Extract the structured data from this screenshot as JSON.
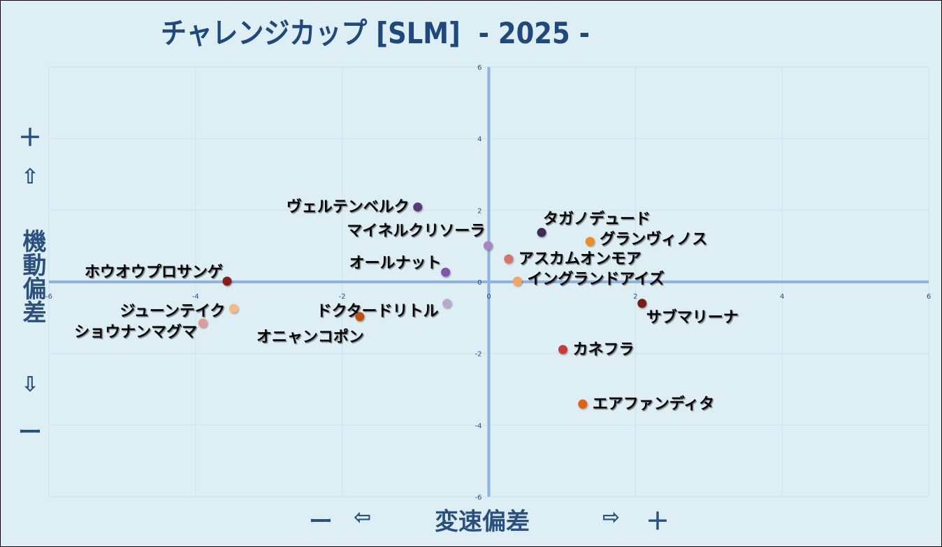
{
  "chart_data": {
    "type": "scatter",
    "title": "チャレンジカップ [SLM]  - 2025 -",
    "xlabel": {
      "minus": "ー",
      "left_arrow": "⇦",
      "text": "変速偏差",
      "right_arrow": "⇨",
      "plus": "＋"
    },
    "ylabel": {
      "plus": "＋",
      "up_arrow": "⇧",
      "text": "機動偏差",
      "down_arrow": "⇩",
      "minus": "ー"
    },
    "xlim": [
      -6,
      6
    ],
    "ylim": [
      -6,
      6
    ],
    "xticks": [
      -6,
      -4,
      -2,
      0,
      2,
      4,
      6
    ],
    "yticks": [
      -6,
      -4,
      -2,
      0,
      2,
      4,
      6
    ],
    "grid": true,
    "points": [
      {
        "name": "ヴェルテンベルク",
        "x": -0.97,
        "y": 2.09,
        "color": "#5a3a78",
        "label_pos": "left"
      },
      {
        "name": "マイネルクリソーラ",
        "x": -0.01,
        "y": 1.01,
        "color": "#a687bf",
        "label_pos": "above-left"
      },
      {
        "name": "タガノデュード",
        "x": 0.72,
        "y": 1.38,
        "color": "#3f2a55",
        "label_pos": "above-right"
      },
      {
        "name": "グランヴィノス",
        "x": 1.38,
        "y": 1.13,
        "color": "#f08a24",
        "label_pos": "right"
      },
      {
        "name": "アスカムオンモア",
        "x": 0.27,
        "y": 0.64,
        "color": "#d9726c",
        "label_pos": "right"
      },
      {
        "name": "オールナット",
        "x": -0.59,
        "y": 0.27,
        "color": "#7e54a8",
        "label_pos": "left-up"
      },
      {
        "name": "イングランドアイズ",
        "x": 0.39,
        "y": 0.02,
        "color": "#f5a65b",
        "label_pos": "right"
      },
      {
        "name": "ホウオウプロサンゲ",
        "x": -3.57,
        "y": 0.02,
        "color": "#8b1e1e",
        "label_pos": "left-up"
      },
      {
        "name": "ジューンテイク",
        "x": -3.48,
        "y": -0.74,
        "color": "#f7b982",
        "label_pos": "left-up"
      },
      {
        "name": "ドクタードリトル",
        "x": -0.57,
        "y": -0.6,
        "color": "#bca8cf",
        "label_pos": "above-left"
      },
      {
        "name": "サブマリーナ",
        "x": 2.09,
        "y": -0.6,
        "color": "#7a1a1a",
        "label_pos": "below-right"
      },
      {
        "name": "ショウナンマグマ",
        "x": -3.9,
        "y": -1.15,
        "color": "#e09a9a",
        "label_pos": "left-down"
      },
      {
        "name": "オニャンコポン",
        "x": -1.76,
        "y": -0.97,
        "color": "#c0500a",
        "label_pos": "below-left"
      },
      {
        "name": "カネフラ",
        "x": 1.01,
        "y": -1.89,
        "color": "#c93a3a",
        "label_pos": "right"
      },
      {
        "name": "エアファンディタ",
        "x": 1.28,
        "y": -3.41,
        "color": "#e0600a",
        "label_pos": "right"
      }
    ]
  }
}
